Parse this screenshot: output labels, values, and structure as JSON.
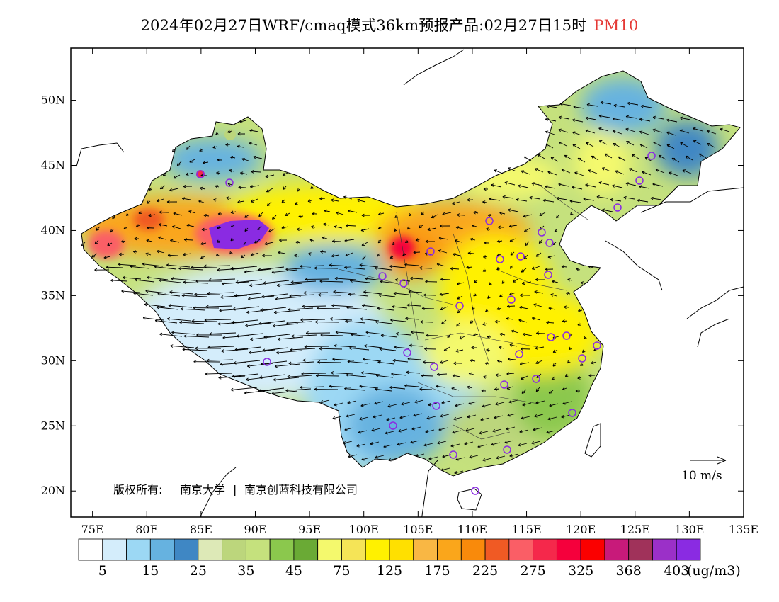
{
  "title": {
    "text": "2024年02月27日WRF/cmaq模式36km预报产品:02月27日15时",
    "variable": "PM10"
  },
  "map": {
    "lon_range": [
      73,
      135
    ],
    "lat_range": [
      18,
      54
    ],
    "lat_ticks": [
      "50N",
      "45N",
      "40N",
      "35N",
      "30N",
      "25N",
      "20N"
    ],
    "lon_ticks": [
      "75E",
      "80E",
      "85E",
      "90E",
      "95E",
      "100E",
      "105E",
      "110E",
      "115E",
      "120E",
      "125E",
      "130E",
      "135E"
    ],
    "copyright": {
      "label": "版权所有:",
      "org1": "南京大学",
      "separator": "|",
      "org2": "南京创蓝科技有限公司"
    },
    "wind_scale": {
      "label": "10 m/s"
    },
    "city_marker_color": "#8a2be2"
  },
  "colorbar": {
    "colors": [
      "#ffffff",
      "#d4edfb",
      "#9cd8f4",
      "#66b2e0",
      "#3f87c4",
      "#dde9b7",
      "#bcd67c",
      "#c5e17d",
      "#8bc84d",
      "#6aaa35",
      "#f4f96d",
      "#f5e457",
      "#fff100",
      "#ffe000",
      "#f9b744",
      "#faa61b",
      "#f98a0b",
      "#f05a24",
      "#fa5e66",
      "#f5284b",
      "#f5003c",
      "#fb0000",
      "#c81a7a",
      "#a0325a",
      "#9b30c8",
      "#8a2be2"
    ],
    "labels": [
      "5",
      "15",
      "25",
      "35",
      "45",
      "75",
      "125",
      "175",
      "225",
      "275",
      "325",
      "368",
      "403"
    ],
    "unit": "(ug/m3)"
  }
}
